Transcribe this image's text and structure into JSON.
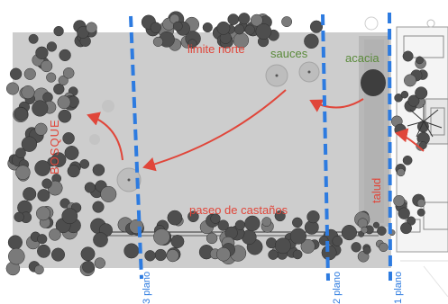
{
  "labels": {
    "limite_norte": "limite norte",
    "sauces": "sauces",
    "acacia": "acacia",
    "bosque": "BOSQUE",
    "paseo": "paseo de castaños",
    "talud": "talud",
    "plano3": "3 plano",
    "plano2": "2 plano",
    "plano1": "1 plano"
  },
  "colors": {
    "field": "#cfcfcf",
    "tree_dark": "#4e4e4e",
    "tree_light": "#7a7a7a",
    "plan_line": "#2d7be0",
    "arrow": "#e0463a",
    "green_text": "#5a8a3a",
    "talud": "#b9b9b9"
  }
}
